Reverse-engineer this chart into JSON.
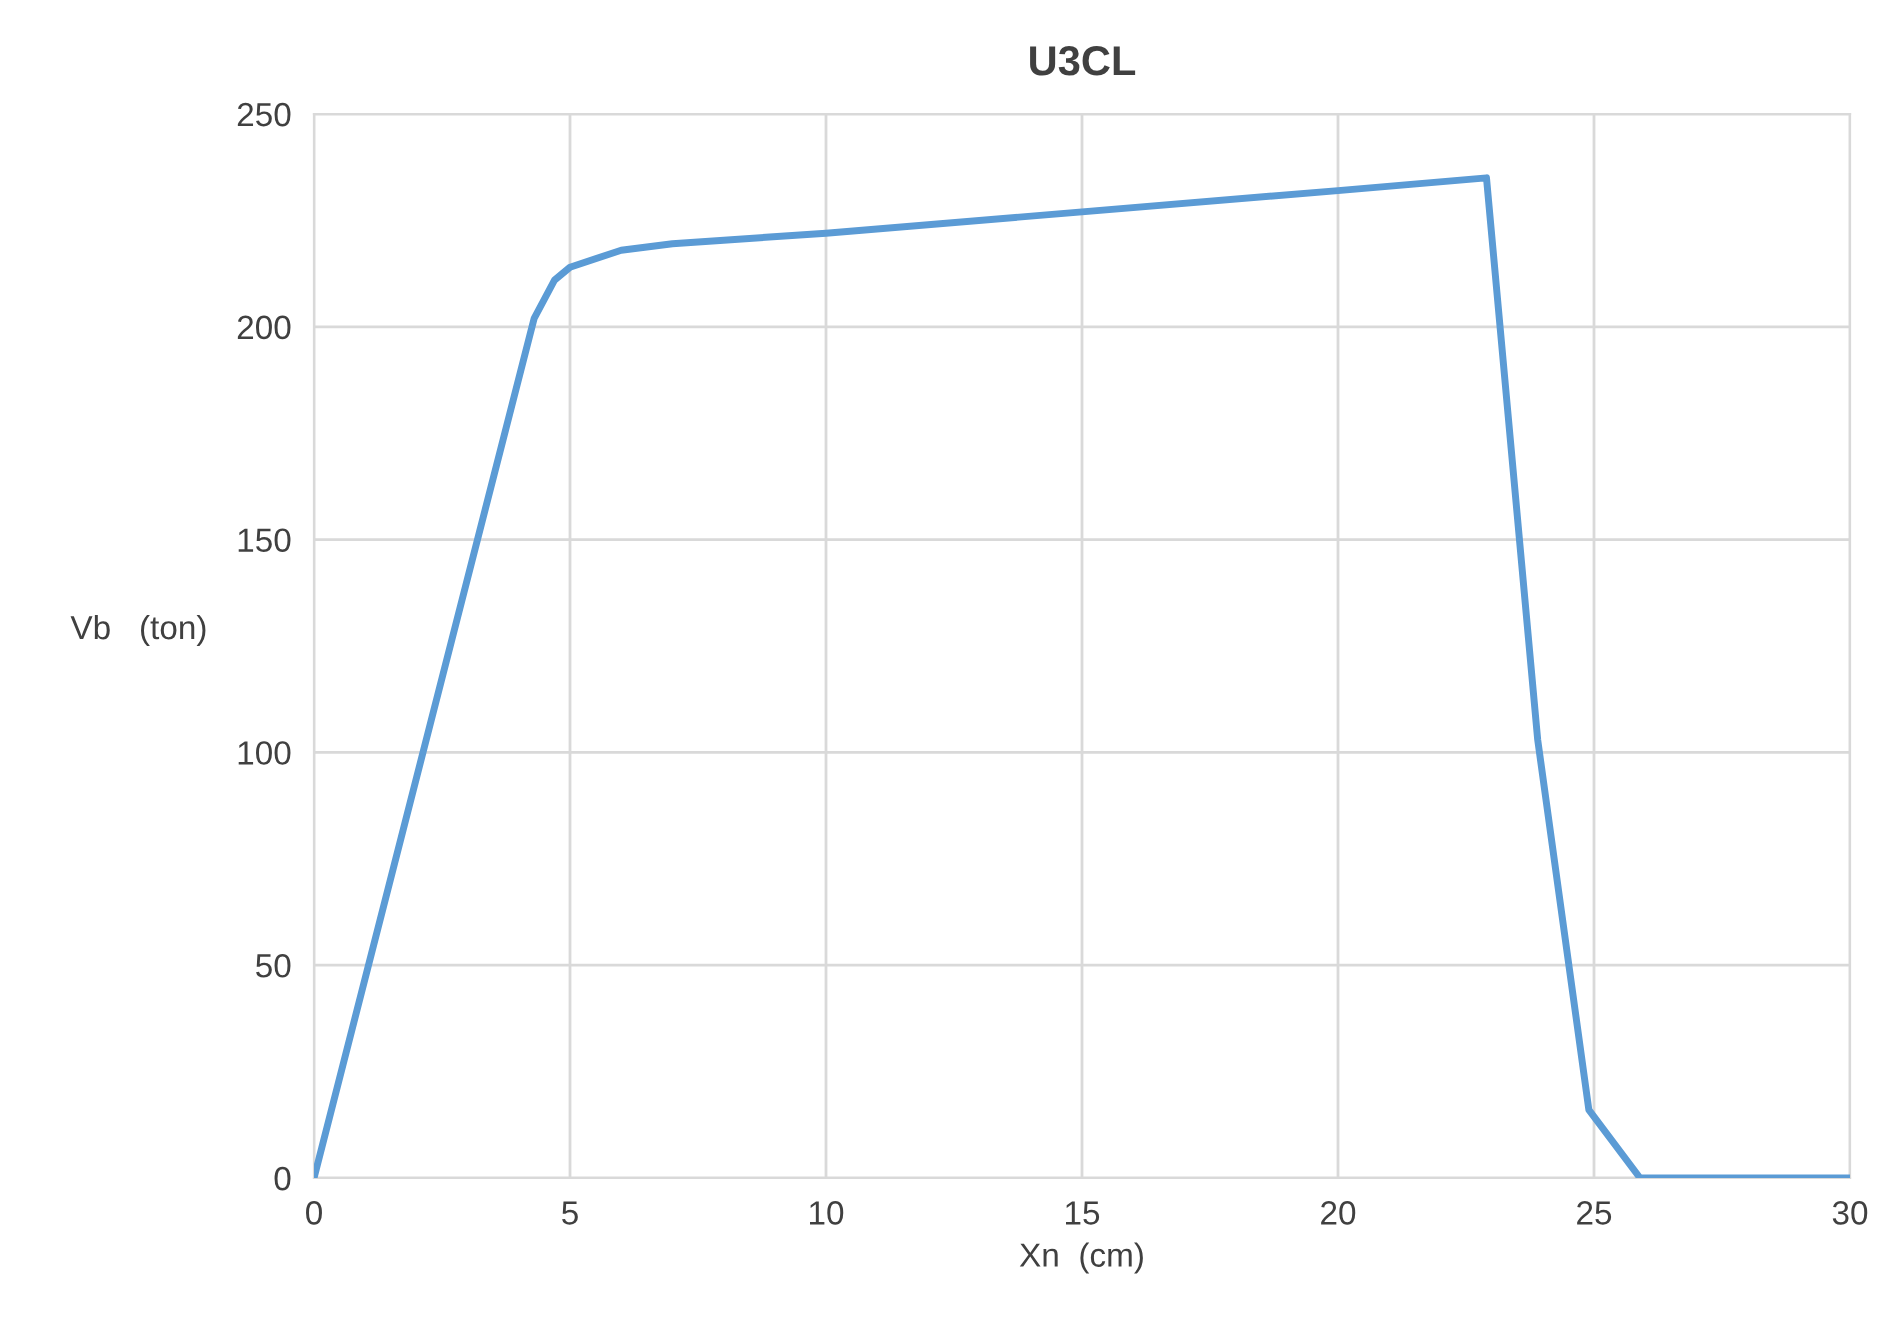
{
  "chart_data": {
    "type": "line",
    "title": "U3CL",
    "xlabel": "Xn  (cm)",
    "ylabel": "Vb   (ton)",
    "series": [
      {
        "color": "#5b9bd5",
        "x": [
          0,
          4.3,
          4.7,
          5,
          6,
          7,
          10,
          15,
          20,
          22.9,
          23.9,
          24.9,
          25.9,
          30
        ],
        "values": [
          0,
          202,
          211,
          214,
          218,
          219.5,
          222,
          227,
          232,
          235,
          103,
          16,
          0,
          0
        ]
      }
    ],
    "xlim": [
      0,
      30
    ],
    "xticks": [
      0,
      5,
      10,
      15,
      20,
      25,
      30
    ],
    "ylim": [
      0,
      250
    ],
    "yticks": [
      0,
      50,
      100,
      150,
      200,
      250
    ],
    "grid": true,
    "marker": "none",
    "line_style": "solid"
  }
}
